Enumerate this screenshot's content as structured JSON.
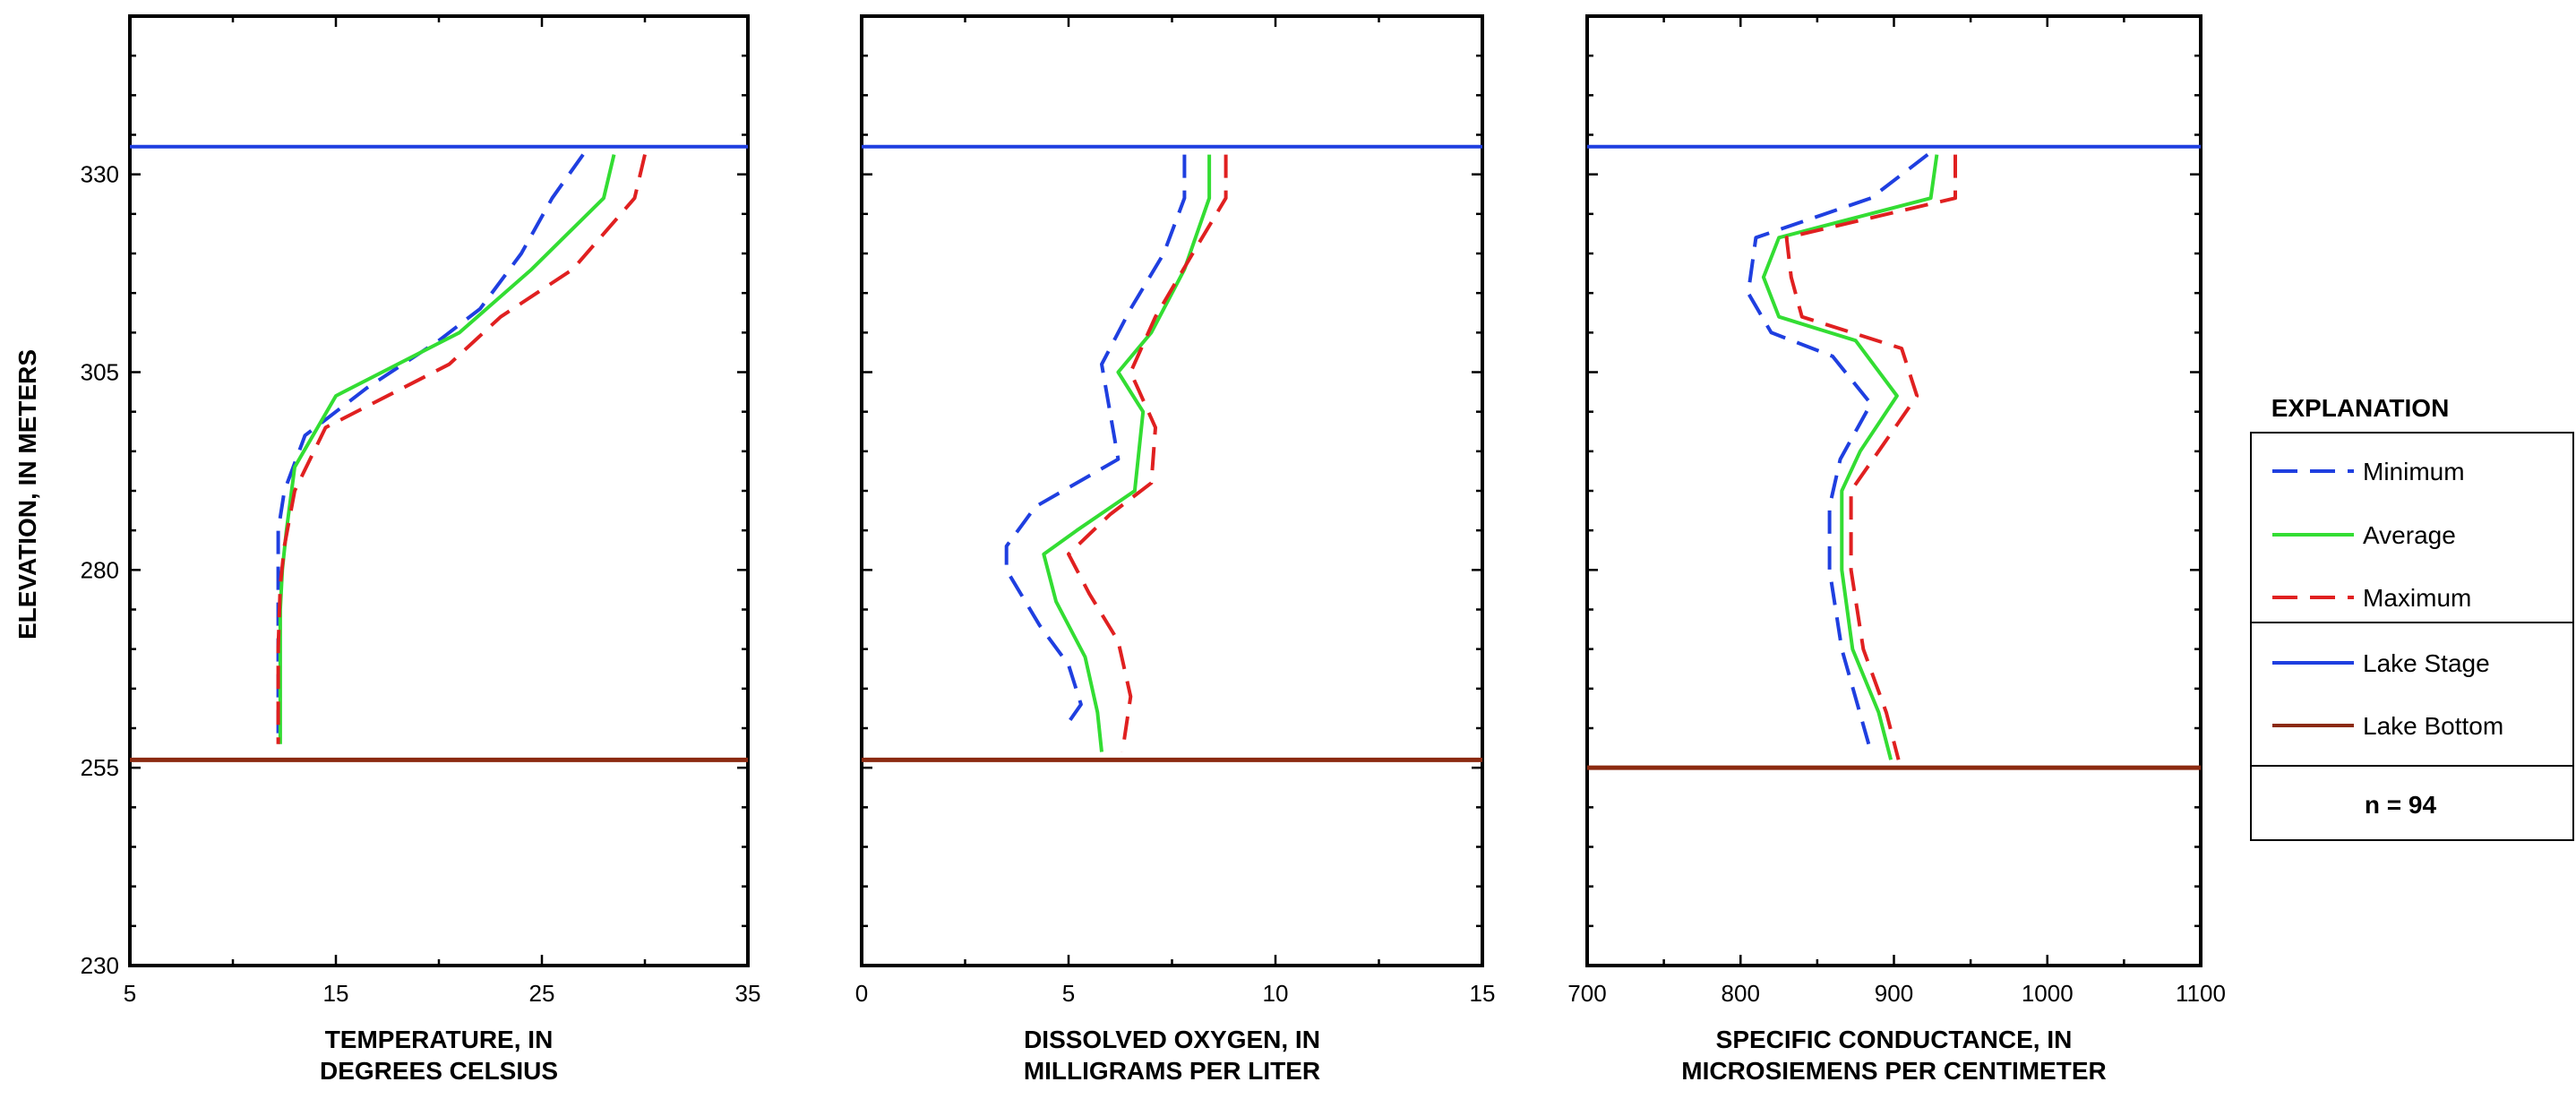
{
  "y_axis_label": "ELEVATION, IN METERS",
  "legend": {
    "title": "EXPLANATION",
    "entries": [
      {
        "label": "Minimum",
        "color": "#1f3fe0",
        "style": "dashed"
      },
      {
        "label": "Average",
        "color": "#33dd33",
        "style": "solid"
      },
      {
        "label": "Maximum",
        "color": "#e02020",
        "style": "dashed"
      },
      {
        "label": "Lake Stage",
        "color": "#1f3fe0",
        "style": "solid"
      },
      {
        "label": "Lake Bottom",
        "color": "#8b2a10",
        "style": "solid"
      }
    ],
    "note": "n = 94"
  },
  "chart_data": [
    {
      "type": "line",
      "xlabel": "TEMPERATURE, IN",
      "xlabel2": "DEGREES CELSIUS",
      "ylabel": "ELEVATION, IN METERS",
      "xlim": [
        5,
        35
      ],
      "ylim": [
        230,
        350
      ],
      "xticks": [
        5,
        15,
        25,
        35
      ],
      "yticks": [
        230,
        255,
        280,
        305,
        330
      ],
      "lake_stage": 333.5,
      "lake_bottom": 256,
      "series": [
        {
          "name": "Minimum",
          "x": [
            27.0,
            25.5,
            24.0,
            22.0,
            20.0,
            16.5,
            13.5,
            12.5,
            12.2,
            12.2,
            12.2,
            12.2
          ],
          "y": [
            332.5,
            327,
            320,
            313,
            309,
            303,
            297,
            290,
            285,
            280,
            270,
            258
          ]
        },
        {
          "name": "Average",
          "x": [
            28.5,
            28.0,
            24.5,
            21.0,
            15.0,
            13.0,
            12.6,
            12.4,
            12.3,
            12.3,
            12.3,
            12.3
          ],
          "y": [
            332.5,
            327,
            318,
            310,
            302,
            293,
            285,
            280,
            275,
            270,
            265,
            258
          ]
        },
        {
          "name": "Maximum",
          "x": [
            30.0,
            29.5,
            26.5,
            23.0,
            20.5,
            14.5,
            13.0,
            12.5,
            12.3,
            12.2,
            12.2,
            12.2
          ],
          "y": [
            332.5,
            327,
            318,
            312,
            306,
            298,
            290,
            283,
            278,
            270,
            265,
            258
          ]
        }
      ]
    },
    {
      "type": "line",
      "xlabel": "DISSOLVED OXYGEN, IN",
      "xlabel2": "MILLIGRAMS PER LITER",
      "ylabel": "ELEVATION, IN METERS",
      "xlim": [
        0,
        15
      ],
      "ylim": [
        230,
        350
      ],
      "xticks": [
        0,
        5,
        10,
        15
      ],
      "yticks": [
        230,
        255,
        280,
        305,
        330
      ],
      "lake_stage": 333.5,
      "lake_bottom": 256,
      "series": [
        {
          "name": "Minimum",
          "x": [
            7.8,
            7.8,
            7.3,
            6.5,
            5.8,
            6.0,
            6.2,
            4.2,
            3.5,
            3.5,
            4.3,
            5.0,
            5.3,
            4.9
          ],
          "y": [
            332.5,
            327,
            320,
            313,
            306,
            300,
            294,
            288,
            283,
            280,
            273,
            268,
            263,
            260
          ]
        },
        {
          "name": "Average",
          "x": [
            8.4,
            8.4,
            7.8,
            7.0,
            6.2,
            6.8,
            6.6,
            5.2,
            4.4,
            4.7,
            5.4,
            5.7,
            5.8
          ],
          "y": [
            332.5,
            327,
            318,
            310,
            305,
            300,
            290,
            285,
            282,
            276,
            269,
            262,
            257
          ]
        },
        {
          "name": "Maximum",
          "x": [
            8.8,
            8.8,
            8.0,
            7.1,
            6.5,
            7.1,
            7.0,
            6.0,
            5.0,
            5.5,
            6.2,
            6.5,
            6.3
          ],
          "y": [
            332.5,
            327,
            320,
            312,
            305,
            298,
            291,
            287,
            282,
            277,
            271,
            264,
            257
          ]
        }
      ]
    },
    {
      "type": "line",
      "xlabel": "SPECIFIC CONDUCTANCE,  IN",
      "xlabel2": "MICROSIEMENS PER CENTIMETER",
      "ylabel": "ELEVATION, IN METERS",
      "xlim": [
        700,
        1100
      ],
      "ylim": [
        230,
        350
      ],
      "xticks": [
        700,
        800,
        900,
        1000,
        1100
      ],
      "yticks": [
        230,
        255,
        280,
        305,
        330
      ],
      "lake_stage": 333.5,
      "lake_bottom": 255,
      "series": [
        {
          "name": "Minimum",
          "x": [
            922,
            885,
            810,
            805,
            820,
            860,
            885,
            865,
            858,
            858,
            866,
            885
          ],
          "y": [
            332.5,
            327,
            322,
            315,
            310,
            307,
            301,
            294,
            288,
            280,
            270,
            257
          ]
        },
        {
          "name": "Average",
          "x": [
            928,
            924,
            825,
            815,
            825,
            875,
            902,
            878,
            866,
            866,
            873,
            890,
            898
          ],
          "y": [
            332.5,
            327,
            322,
            317,
            312,
            309,
            302,
            295,
            290,
            280,
            270,
            262,
            256
          ]
        },
        {
          "name": "Maximum",
          "x": [
            940,
            940,
            830,
            833,
            840,
            905,
            915,
            890,
            872,
            872,
            880,
            895,
            903
          ],
          "y": [
            332.5,
            327,
            322,
            317,
            312,
            308,
            302,
            295,
            290,
            280,
            270,
            262,
            256
          ]
        }
      ]
    }
  ]
}
